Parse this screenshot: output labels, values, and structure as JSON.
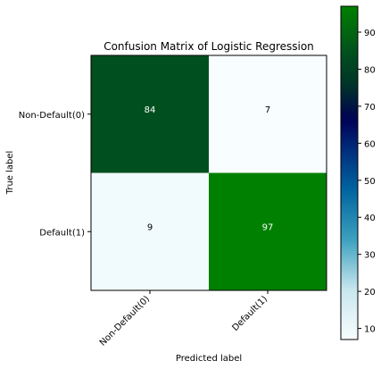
{
  "chart_data": {
    "type": "heatmap",
    "title": "Confusion Matrix of Logistic Regression",
    "xlabel": "Predicted label",
    "ylabel": "True label",
    "x_categories": [
      "Non-Default(0)",
      "Default(1)"
    ],
    "y_categories": [
      "Non-Default(0)",
      "Default(1)"
    ],
    "values": [
      [
        84,
        7
      ],
      [
        9,
        97
      ]
    ],
    "colormap": "ocean_r",
    "colorbar": {
      "min": 7,
      "max": 97,
      "ticks": [
        10,
        20,
        30,
        40,
        50,
        60,
        70,
        80,
        90
      ],
      "tick_labels": [
        "10",
        "20",
        "30",
        "40",
        "50",
        "60",
        "70",
        "80",
        "90"
      ]
    },
    "grid": false
  }
}
